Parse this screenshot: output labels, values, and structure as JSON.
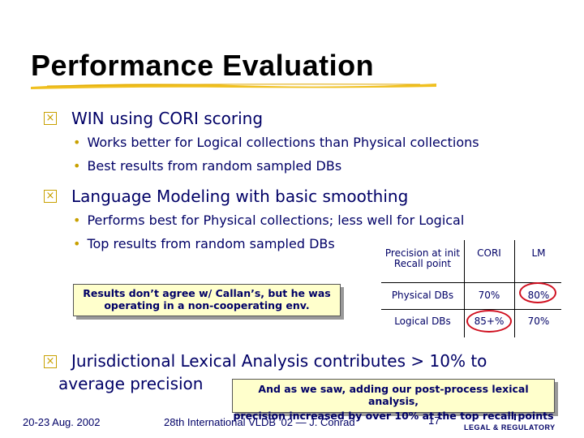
{
  "title": "Performance Evaluation",
  "bullets": [
    {
      "text": "WIN using CORI scoring",
      "sub": [
        "Works better for Logical collections than Physical collections",
        "Best results from random sampled DBs"
      ]
    },
    {
      "text": "Language Modeling with basic smoothing",
      "sub": [
        "Performs best for Physical collections; less well for Logical",
        "Top results from random sampled DBs"
      ]
    },
    {
      "text_line1": "Jurisdictional Lexical Analysis contributes > 10% to",
      "text_line2": "average precision"
    }
  ],
  "note_callan": {
    "line1": "Results don’t agree w/ Callan’s, but he was",
    "line2": "operating in a non-cooperating env."
  },
  "note_lexical": {
    "line1": "And as we saw, adding our post-process lexical analysis,",
    "line2": "precision increased by over 10% at the top recall points"
  },
  "precision_table": {
    "header": [
      "Precision at init Recall point",
      "CORI",
      "LM"
    ],
    "rows": [
      [
        "Physical DBs",
        "70%",
        "80%"
      ],
      [
        "Logical DBs",
        "85+%",
        "70%"
      ]
    ],
    "highlight_color": "#d01020"
  },
  "footer": {
    "date": "20-23 Aug. 2002",
    "conference": "28th International VLDB ’02 — J. Conrad",
    "page": "17",
    "logo": "LEGAL & REGULATORY"
  },
  "colors": {
    "text": "#000066",
    "bullet_accent": "#c8a000",
    "note_fill": "#ffffcc"
  }
}
